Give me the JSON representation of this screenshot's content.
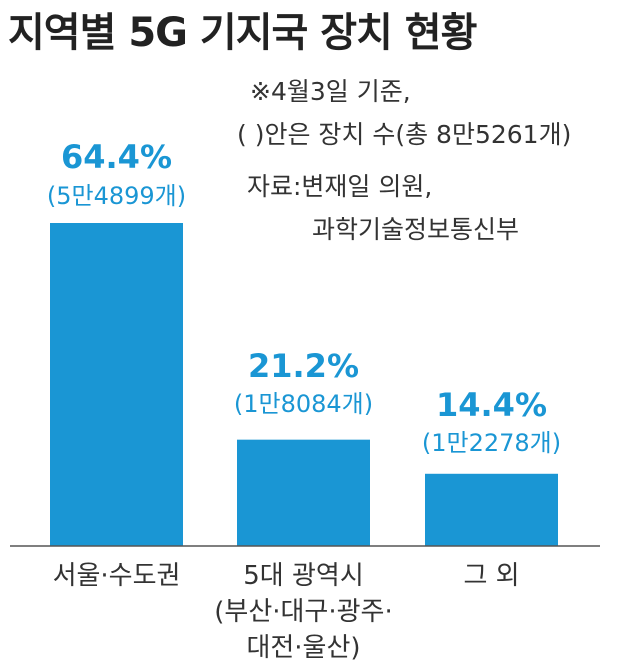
{
  "chart_data": {
    "type": "bar",
    "title": "지역별 5G 기지국 장치 현황",
    "notes": [
      "※4월3일 기준,",
      "( )안은 장치 수(총 8만5261개)",
      "자료:변재일 의원,",
      "과학기술정보통신부"
    ],
    "categories": [
      [
        "서울·수도권"
      ],
      [
        "5대 광역시",
        "(부산·대구·광주·",
        "대전·울산)"
      ],
      [
        "그 외"
      ]
    ],
    "values": [
      64.4,
      21.2,
      14.4
    ],
    "value_labels": [
      "64.4%",
      "21.2%",
      "14.4%"
    ],
    "count_labels": [
      "(5만4899개)",
      "(1만8084개)",
      "(1만2278개)"
    ],
    "ylim": [
      0,
      64.4
    ],
    "grid": false,
    "legend": "none",
    "colors": {
      "bar": "#1a96d4",
      "label": "#1a96d4",
      "axis": "#555555",
      "text": "#333333"
    }
  }
}
